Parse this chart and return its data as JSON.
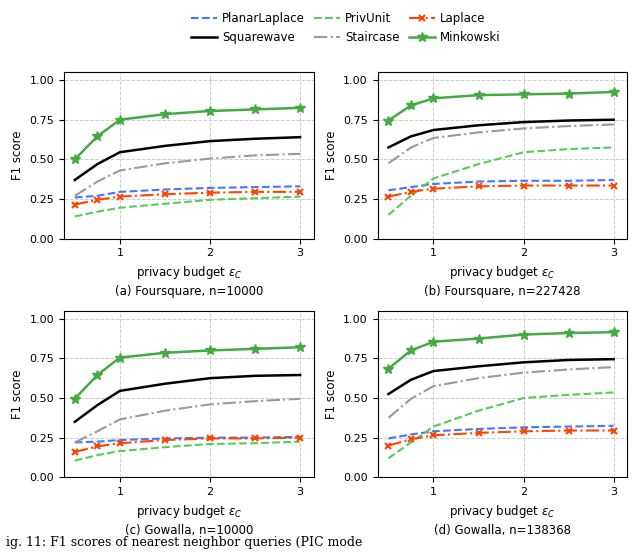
{
  "x_values": [
    0.5,
    0.75,
    1.0,
    1.5,
    2.0,
    2.5,
    3.0
  ],
  "subplots": [
    {
      "title": "(a) Foursquare, n=10000",
      "PlanarLaplace": [
        0.26,
        0.27,
        0.295,
        0.31,
        0.32,
        0.325,
        0.33
      ],
      "Squarewave": [
        0.37,
        0.47,
        0.545,
        0.585,
        0.615,
        0.63,
        0.64
      ],
      "PrivUnit": [
        0.14,
        0.17,
        0.195,
        0.22,
        0.245,
        0.255,
        0.265
      ],
      "Staircase": [
        0.27,
        0.36,
        0.43,
        0.475,
        0.505,
        0.525,
        0.535
      ],
      "Laplace": [
        0.215,
        0.245,
        0.265,
        0.28,
        0.29,
        0.295,
        0.295
      ],
      "Minkowski": [
        0.5,
        0.645,
        0.75,
        0.785,
        0.805,
        0.815,
        0.825
      ]
    },
    {
      "title": "(b) Foursquare, n=227428",
      "PlanarLaplace": [
        0.305,
        0.325,
        0.345,
        0.36,
        0.365,
        0.365,
        0.37
      ],
      "Squarewave": [
        0.575,
        0.645,
        0.685,
        0.715,
        0.735,
        0.745,
        0.75
      ],
      "PrivUnit": [
        0.15,
        0.27,
        0.38,
        0.47,
        0.545,
        0.565,
        0.575
      ],
      "Staircase": [
        0.475,
        0.575,
        0.635,
        0.67,
        0.695,
        0.71,
        0.72
      ],
      "Laplace": [
        0.265,
        0.295,
        0.315,
        0.33,
        0.335,
        0.335,
        0.335
      ],
      "Minkowski": [
        0.745,
        0.84,
        0.885,
        0.905,
        0.91,
        0.915,
        0.925
      ]
    },
    {
      "title": "(c) Gowalla, n=10000",
      "PlanarLaplace": [
        0.22,
        0.225,
        0.235,
        0.245,
        0.25,
        0.25,
        0.255
      ],
      "Squarewave": [
        0.35,
        0.455,
        0.545,
        0.59,
        0.625,
        0.64,
        0.645
      ],
      "PrivUnit": [
        0.105,
        0.14,
        0.165,
        0.19,
        0.21,
        0.215,
        0.225
      ],
      "Staircase": [
        0.22,
        0.29,
        0.365,
        0.42,
        0.46,
        0.48,
        0.495
      ],
      "Laplace": [
        0.16,
        0.195,
        0.215,
        0.235,
        0.245,
        0.245,
        0.25
      ],
      "Minkowski": [
        0.495,
        0.645,
        0.755,
        0.785,
        0.8,
        0.81,
        0.82
      ]
    },
    {
      "title": "(d) Gowalla, n=138368",
      "PlanarLaplace": [
        0.245,
        0.27,
        0.29,
        0.305,
        0.315,
        0.32,
        0.325
      ],
      "Squarewave": [
        0.525,
        0.615,
        0.67,
        0.7,
        0.725,
        0.74,
        0.745
      ],
      "PrivUnit": [
        0.12,
        0.22,
        0.32,
        0.42,
        0.5,
        0.52,
        0.535
      ],
      "Staircase": [
        0.375,
        0.495,
        0.575,
        0.625,
        0.66,
        0.68,
        0.695
      ],
      "Laplace": [
        0.2,
        0.24,
        0.265,
        0.28,
        0.29,
        0.295,
        0.295
      ],
      "Minkowski": [
        0.685,
        0.8,
        0.855,
        0.875,
        0.9,
        0.91,
        0.915
      ]
    }
  ],
  "legend_order": [
    "PlanarLaplace",
    "Squarewave",
    "PrivUnit",
    "Staircase",
    "Laplace",
    "Minkowski"
  ],
  "legend": {
    "PlanarLaplace": {
      "color": "#4477ff",
      "linestyle": "--",
      "marker": null,
      "lw": 1.5
    },
    "Squarewave": {
      "color": "#000000",
      "linestyle": "-",
      "marker": null,
      "lw": 1.8
    },
    "PrivUnit": {
      "color": "#55cc55",
      "linestyle": "--",
      "marker": null,
      "lw": 1.5
    },
    "Staircase": {
      "color": "#999999",
      "linestyle": "-.",
      "marker": null,
      "lw": 1.5
    },
    "Laplace": {
      "color": "#ff4400",
      "linestyle": "-.",
      "marker": "x",
      "lw": 1.5
    },
    "Minkowski": {
      "color": "#44aa44",
      "linestyle": "-",
      "marker": "*",
      "lw": 1.8
    }
  },
  "ylabel": "F1 score",
  "xlabel": "privacy budget $\\epsilon_C$",
  "ylim": [
    0.0,
    1.05
  ],
  "yticks": [
    0.0,
    0.25,
    0.5,
    0.75,
    1.0
  ],
  "xticks": [
    1.0,
    2.0,
    3.0
  ],
  "xlim": [
    0.38,
    3.15
  ],
  "fig_caption": "ig. 11: F1 scores of nearest neighbor queries (PIC mode"
}
